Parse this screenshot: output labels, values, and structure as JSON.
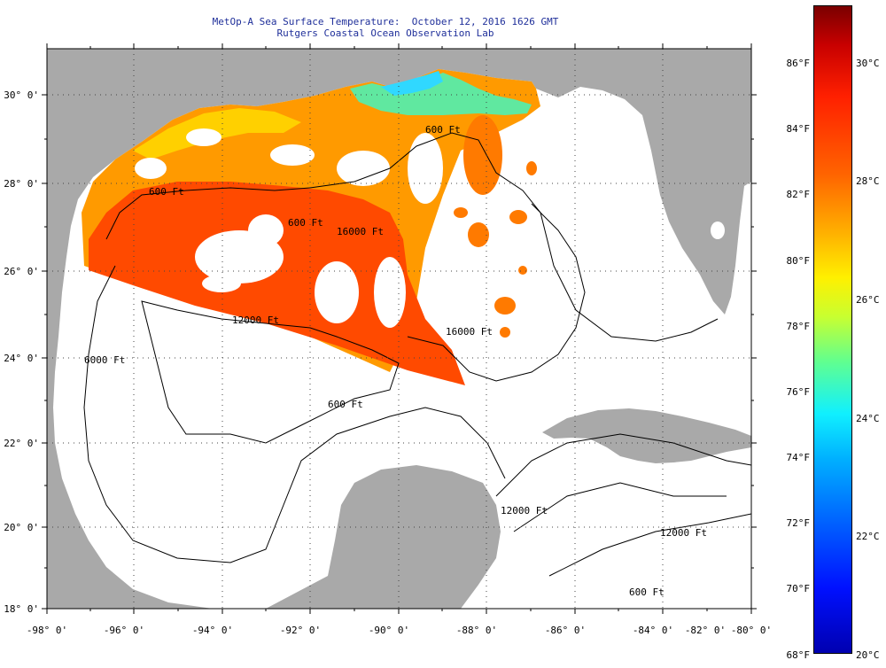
{
  "title_line1": "MetOp-A Sea Surface Temperature:  October 12, 2016 1626 GMT",
  "title_line2": "Rutgers Coastal Ocean Observation Lab",
  "lon_labels": [
    "-98° 0'",
    "-96° 0'",
    "-94° 0'",
    "-92° 0'",
    "-90° 0'",
    "-88° 0'",
    "-86° 0'",
    "-84° 0'",
    "-82° 0'",
    "-80° 0'"
  ],
  "lat_labels": [
    "30° 0'",
    "28° 0'",
    "26° 0'",
    "24° 0'",
    "22° 0'",
    "20° 0'",
    "18° 0'"
  ],
  "isobath_labels": [
    "600 Ft",
    "600 Ft",
    "600 Ft",
    "12000 Ft",
    "16000 Ft",
    "16000 Ft",
    "6000 Ft",
    "600 Ft",
    "12000 Ft",
    "12000 Ft",
    "600 Ft"
  ],
  "colorbar": {
    "fahrenheit": [
      "86°F",
      "84°F",
      "82°F",
      "80°F",
      "78°F",
      "76°F",
      "74°F",
      "72°F",
      "70°F",
      "68°F"
    ],
    "celsius": [
      "30°C",
      "28°C",
      "26°C",
      "24°C",
      "22°C",
      "20°C"
    ]
  },
  "colors": {
    "land": "#a9a9a9",
    "title": "#1f2f9a",
    "sst_hot": "#ff3000",
    "sst_warm": "#ff8c00"
  }
}
